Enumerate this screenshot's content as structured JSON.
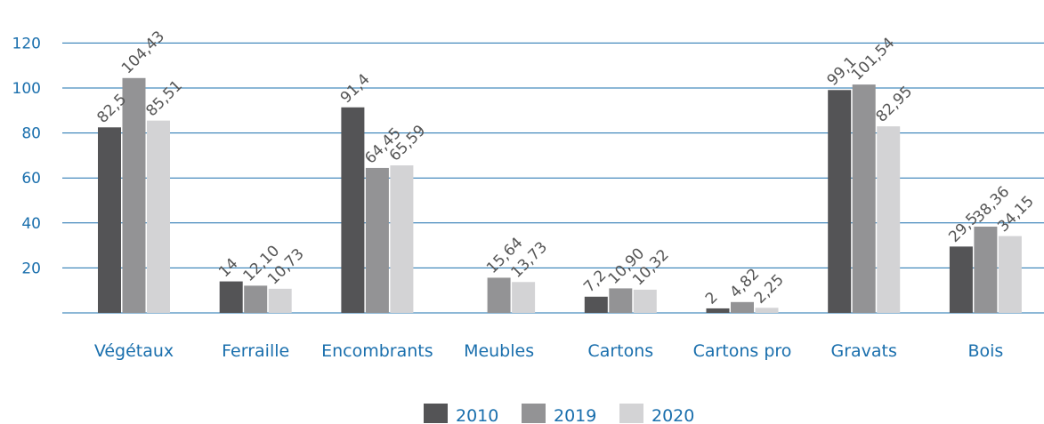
{
  "chart_data": {
    "type": "bar",
    "categories": [
      "Végétaux",
      "Ferraille",
      "Encombrants",
      "Meubles",
      "Cartons",
      "Cartons pro",
      "Gravats",
      "Bois"
    ],
    "series": [
      {
        "name": "2010",
        "color": "#545456",
        "values": [
          82.5,
          14,
          91.4,
          null,
          7.2,
          2,
          99.1,
          29.5
        ],
        "labels": [
          "82,5",
          "14",
          "91,4",
          "",
          "7,2",
          "2",
          "99,1",
          "29,5"
        ]
      },
      {
        "name": "2019",
        "color": "#939395",
        "values": [
          104.43,
          12.1,
          64.45,
          15.64,
          10.9,
          4.82,
          101.54,
          38.36
        ],
        "labels": [
          "104,43",
          "12,10",
          "64,45",
          "15,64",
          "10,90",
          "4,82",
          "101,54",
          "38,36"
        ]
      },
      {
        "name": "2020",
        "color": "#d3d3d5",
        "values": [
          85.51,
          10.73,
          65.59,
          13.73,
          10.32,
          2.25,
          82.95,
          34.15
        ],
        "labels": [
          "85,51",
          "10,73",
          "65,59",
          "13,73",
          "10,32",
          "2,25",
          "82,95",
          "34,15"
        ]
      }
    ],
    "yticks": [
      20,
      40,
      60,
      80,
      100,
      120
    ],
    "ylim": [
      0,
      120
    ],
    "grid": true,
    "legend_position": "bottom-center",
    "gridline_color": "#1a6fad",
    "axis_text_color": "#1a6fad"
  }
}
